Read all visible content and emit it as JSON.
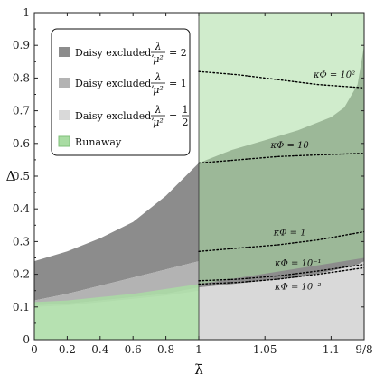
{
  "chart_data": {
    "type": "area",
    "xlabel": "λ̄",
    "ylabel": "Δ",
    "xlim_left": [
      0,
      1
    ],
    "xlim_right": [
      1,
      1.125
    ],
    "ylim": [
      0,
      1
    ],
    "xticks_left": [
      "0",
      "0.2",
      "0.4",
      "0.6",
      "0.8",
      "1"
    ],
    "xticks_right": [
      "1.05",
      "1.1",
      "9/8"
    ],
    "yticks": [
      "0",
      "0.1",
      "0.2",
      "0.3",
      "0.4",
      "0.5",
      "0.6",
      "0.7",
      "0.8",
      "0.9",
      "1"
    ],
    "grid": false,
    "legend_position": "top-left",
    "colors": {
      "dark": "#8c8c8c",
      "mid": "#b3b3b3",
      "light": "#d9d9d9",
      "runaway": "#a9dca3",
      "runaway_fill_opacity": 0.55
    },
    "legend": [
      {
        "key": "dark",
        "text": "Daisy excluded,",
        "frac_num": "λ",
        "frac_den": "μ²",
        "eq": "= 2"
      },
      {
        "key": "mid",
        "text": "Daisy excluded,",
        "frac_num": "λ",
        "frac_den": "μ²",
        "eq": "= 1"
      },
      {
        "key": "light",
        "text": "Daisy excluded,",
        "frac_num": "λ",
        "frac_den": "μ²",
        "eq": "=",
        "eq_num": "1",
        "eq_den": "2"
      },
      {
        "key": "runaway",
        "text": "Runaway"
      }
    ],
    "bands_left": [
      {
        "key": "dark",
        "x": [
          0,
          0.2,
          0.4,
          0.6,
          0.8,
          1.0
        ],
        "lower": [
          0.12,
          0.14,
          0.165,
          0.19,
          0.215,
          0.24
        ],
        "upper": [
          0.24,
          0.27,
          0.31,
          0.36,
          0.44,
          0.54
        ]
      },
      {
        "key": "mid",
        "x": [
          0,
          0.2,
          0.4,
          0.6,
          0.8,
          1.0
        ],
        "lower": [
          0.105,
          0.11,
          0.12,
          0.13,
          0.14,
          0.16
        ],
        "upper": [
          0.12,
          0.14,
          0.165,
          0.19,
          0.215,
          0.24
        ]
      },
      {
        "key": "light",
        "x": [
          0,
          0.2,
          0.4,
          0.6,
          0.8,
          1.0
        ],
        "lower": [
          0.1,
          0.105,
          0.115,
          0.125,
          0.135,
          0.15
        ],
        "upper": [
          0.105,
          0.11,
          0.12,
          0.13,
          0.14,
          0.16
        ]
      }
    ],
    "runaway_left": {
      "x": [
        0,
        0.2,
        0.4,
        0.6,
        0.8,
        1.0
      ],
      "upper": [
        0.115,
        0.12,
        0.13,
        0.14,
        0.155,
        0.17
      ]
    },
    "regions_right": [
      {
        "key": "light",
        "x": [
          1.0,
          1.025,
          1.05,
          1.075,
          1.1,
          1.125
        ],
        "lower": [
          0,
          0,
          0,
          0,
          0,
          0
        ],
        "upper": [
          0.16,
          0.17,
          0.18,
          0.19,
          0.21,
          0.24
        ]
      },
      {
        "key": "dark",
        "x": [
          1.0,
          1.025,
          1.05,
          1.075,
          1.1,
          1.11,
          1.12,
          1.125
        ],
        "lower": [
          0.16,
          0.17,
          0.18,
          0.19,
          0.21,
          0.22,
          0.23,
          0.24
        ],
        "upper": [
          0.54,
          0.58,
          0.61,
          0.64,
          0.68,
          0.71,
          0.78,
          0.9
        ]
      },
      {
        "key": "runaway",
        "x": [
          1.0,
          1.125
        ],
        "lower": [
          0.17,
          0.25
        ],
        "upper": [
          1.0,
          1.0
        ]
      }
    ],
    "kappa_curves": [
      {
        "label": "κΦ = 10²",
        "x": [
          1.0,
          1.03,
          1.06,
          1.09,
          1.125
        ],
        "y": [
          0.82,
          0.81,
          0.795,
          0.78,
          0.77
        ]
      },
      {
        "label": "κΦ = 10",
        "x": [
          1.0,
          1.03,
          1.06,
          1.09,
          1.125
        ],
        "y": [
          0.54,
          0.55,
          0.56,
          0.565,
          0.57
        ]
      },
      {
        "label": "κΦ = 1",
        "x": [
          1.0,
          1.03,
          1.06,
          1.09,
          1.125
        ],
        "y": [
          0.27,
          0.28,
          0.29,
          0.305,
          0.33
        ]
      },
      {
        "label": "κΦ = 10⁻¹",
        "x": [
          1.0,
          1.03,
          1.06,
          1.09,
          1.125
        ],
        "y": [
          0.18,
          0.185,
          0.195,
          0.21,
          0.23
        ]
      },
      {
        "label": "κΦ = 10⁻²",
        "x": [
          1.0,
          1.03,
          1.06,
          1.09,
          1.125
        ],
        "y": [
          0.17,
          0.175,
          0.185,
          0.2,
          0.22
        ]
      }
    ]
  }
}
